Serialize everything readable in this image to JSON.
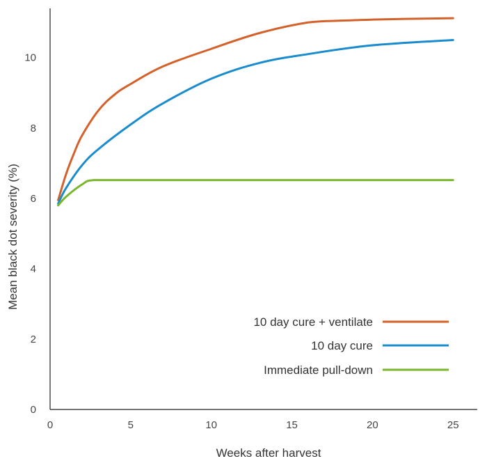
{
  "chart_data": {
    "type": "line",
    "title": "",
    "xlabel": "Weeks after harvest",
    "ylabel": "Mean black dot severity (%)",
    "xlim": [
      0,
      26.5
    ],
    "ylim": [
      0,
      11.4
    ],
    "xticks": [
      0,
      5,
      10,
      15,
      20,
      25
    ],
    "yticks": [
      0,
      2,
      4,
      6,
      8,
      10
    ],
    "grid": false,
    "legend_position": "bottom-right",
    "series": [
      {
        "name": "10 day cure + ventilate",
        "color": "#d4602a",
        "x": [
          0.5,
          1,
          1.5,
          2,
          3,
          4,
          5,
          7,
          10,
          13,
          16,
          18,
          20,
          22,
          25
        ],
        "y": [
          5.95,
          6.7,
          7.3,
          7.8,
          8.5,
          8.95,
          9.25,
          9.75,
          10.25,
          10.7,
          11.0,
          11.05,
          11.08,
          11.1,
          11.12
        ]
      },
      {
        "name": "10 day cure",
        "color": "#1a8ccd",
        "x": [
          0.5,
          1,
          2,
          3,
          5,
          7,
          10,
          13,
          16,
          20,
          25
        ],
        "y": [
          5.85,
          6.3,
          6.95,
          7.4,
          8.1,
          8.7,
          9.4,
          9.85,
          10.1,
          10.35,
          10.5
        ]
      },
      {
        "name": "Immediate pull-down",
        "color": "#7ab52e",
        "x": [
          0.5,
          1,
          2,
          2.7,
          5,
          10,
          15,
          20,
          25
        ],
        "y": [
          5.8,
          6.05,
          6.4,
          6.52,
          6.52,
          6.52,
          6.52,
          6.52,
          6.52
        ]
      }
    ]
  }
}
